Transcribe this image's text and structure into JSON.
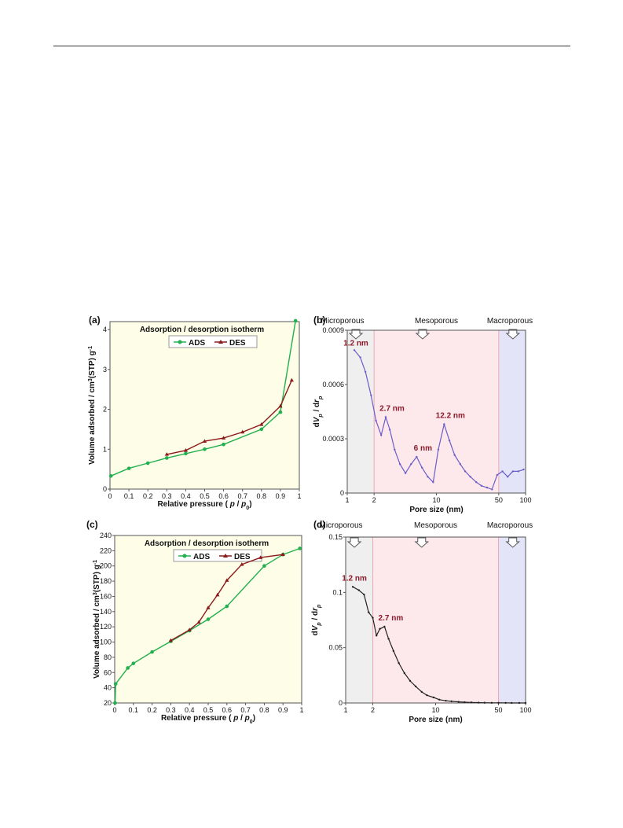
{
  "chart_data": [
    {
      "panel": "(a)",
      "type": "line",
      "title": "Adsorption / desorption isotherm",
      "xlabel": "Relative pressure ( p / p0)",
      "ylabel": "Volume adsorbed / cm3(STP) g-1",
      "xlim": [
        0,
        1
      ],
      "ylim": [
        0,
        4.2
      ],
      "xticks": [
        0,
        0.1,
        0.2,
        0.3,
        0.4,
        0.5,
        0.6,
        0.7,
        0.8,
        0.9,
        1
      ],
      "xtick_labels": [
        "0",
        "0.1",
        "0.2",
        "0.3",
        "0.4",
        "0.5",
        "0.6",
        "0.7",
        "0.8",
        "0.9",
        "1"
      ],
      "yticks": [
        0,
        1,
        2,
        3,
        4
      ],
      "ytick_labels": [
        "0",
        "1",
        "2",
        "3",
        "4"
      ],
      "legend_position": "top-center",
      "background": "#fdfde8",
      "series": [
        {
          "name": "ADS",
          "color": "#22b04e",
          "marker": "circle",
          "x": [
            0.005,
            0.1,
            0.2,
            0.3,
            0.4,
            0.5,
            0.6,
            0.8,
            0.9,
            0.98
          ],
          "y": [
            0.33,
            0.52,
            0.65,
            0.78,
            0.89,
            1.0,
            1.12,
            1.5,
            1.93,
            4.22
          ]
        },
        {
          "name": "DES",
          "color": "#8b1a1a",
          "marker": "triangle",
          "x": [
            0.3,
            0.4,
            0.5,
            0.6,
            0.7,
            0.8,
            0.9,
            0.96
          ],
          "y": [
            0.87,
            0.97,
            1.2,
            1.28,
            1.43,
            1.62,
            2.08,
            2.73
          ]
        }
      ]
    },
    {
      "panel": "(b)",
      "type": "line",
      "xlabel": "Pore size (nm)",
      "ylabel": "dVp / drp",
      "xscale": "log",
      "xlim": [
        1,
        100
      ],
      "ylim": [
        0,
        0.0009
      ],
      "xticks": [
        1,
        2,
        10,
        50,
        100
      ],
      "xtick_labels": [
        "1",
        "2",
        "10",
        "50",
        "100"
      ],
      "yticks": [
        0,
        0.0003,
        0.0006,
        0.0009
      ],
      "ytick_labels": [
        "0",
        "0.0003",
        "0.0006",
        "0.0009"
      ],
      "regions": [
        {
          "label": "Microporous",
          "from": 1,
          "to": 2,
          "color": "#efefef"
        },
        {
          "label": "Mesoporous",
          "from": 2,
          "to": 50,
          "color": "#fde8ec"
        },
        {
          "label": "Macroporous",
          "from": 50,
          "to": 100,
          "color": "#e4e4f8"
        }
      ],
      "annotations": [
        {
          "text": "1.2 nm",
          "x": 1.2,
          "y": 0.00078
        },
        {
          "text": "2.7 nm",
          "x": 2.7,
          "y": 0.00042
        },
        {
          "text": "6 nm",
          "x": 6,
          "y": 0.0002
        },
        {
          "text": "12.2 nm",
          "x": 12.2,
          "y": 0.00038
        }
      ],
      "series": [
        {
          "color": "#6a5ec8",
          "x": [
            1.2,
            1.4,
            1.6,
            1.85,
            2.1,
            2.4,
            2.7,
            3.0,
            3.4,
            3.9,
            4.5,
            5.2,
            6.0,
            6.9,
            8.0,
            9.2,
            10.5,
            12.2,
            14,
            16,
            18.5,
            21,
            24,
            28,
            32,
            37,
            42,
            48,
            55,
            63,
            72,
            83,
            95
          ],
          "y": [
            0.00079,
            0.00075,
            0.00067,
            0.00054,
            0.0004,
            0.00032,
            0.00042,
            0.00035,
            0.00024,
            0.00016,
            0.00011,
            0.00016,
            0.0002,
            0.00014,
            9e-05,
            6e-05,
            0.00024,
            0.00038,
            0.00029,
            0.00021,
            0.00016,
            0.00012,
            9e-05,
            6e-05,
            4e-05,
            3e-05,
            2e-05,
            0.0001,
            0.00012,
            9e-05,
            0.00012,
            0.00012,
            0.00013
          ]
        }
      ]
    },
    {
      "panel": "(c)",
      "type": "line",
      "title": "Adsorption / desorption isotherm",
      "xlabel": "Relative pressure ( p / p0)",
      "ylabel": "Volume adsorbed / cm3(STP) g-1",
      "xlim": [
        0,
        1
      ],
      "ylim": [
        20,
        240
      ],
      "xticks": [
        0,
        0.1,
        0.2,
        0.3,
        0.4,
        0.5,
        0.6,
        0.7,
        0.8,
        0.9,
        1
      ],
      "xtick_labels": [
        "0",
        "0.1",
        "0.2",
        "0.3",
        "0.4",
        "0.5",
        "0.6",
        "0.7",
        "0.8",
        "0.9",
        "1"
      ],
      "yticks": [
        20,
        40,
        60,
        80,
        100,
        120,
        140,
        160,
        180,
        200,
        220,
        240
      ],
      "ytick_labels": [
        "20",
        "40",
        "60",
        "80",
        "100",
        "120",
        "140",
        "160",
        "180",
        "200",
        "220",
        "240"
      ],
      "legend_position": "top-center",
      "background": "#fdfde8",
      "series": [
        {
          "name": "ADS",
          "color": "#22b04e",
          "marker": "circle",
          "x": [
            0.002,
            0.005,
            0.07,
            0.1,
            0.2,
            0.3,
            0.4,
            0.5,
            0.6,
            0.8,
            0.9,
            0.99
          ],
          "y": [
            20,
            45,
            66,
            72,
            87,
            101,
            115,
            130,
            147,
            200,
            215,
            223
          ]
        },
        {
          "name": "DES",
          "color": "#8b1a1a",
          "marker": "triangle",
          "x": [
            0.3,
            0.4,
            0.45,
            0.5,
            0.55,
            0.6,
            0.68,
            0.78,
            0.9
          ],
          "y": [
            102,
            116,
            126,
            145,
            162,
            181,
            202,
            211,
            215
          ]
        }
      ]
    },
    {
      "panel": "(d)",
      "type": "line",
      "xlabel": "Pore size (nm)",
      "ylabel": "dVp / drp",
      "xscale": "log",
      "xlim": [
        1,
        100
      ],
      "ylim": [
        0,
        0.15
      ],
      "xticks": [
        1,
        2,
        10,
        50,
        100
      ],
      "xtick_labels": [
        "1",
        "2",
        "10",
        "50",
        "100"
      ],
      "yticks": [
        0,
        0.05,
        0.1,
        0.15
      ],
      "ytick_labels": [
        "0",
        "0.05",
        "0.1",
        "0.15"
      ],
      "regions": [
        {
          "label": "Microporous",
          "from": 1,
          "to": 2,
          "color": "#efefef"
        },
        {
          "label": "Mesoporous",
          "from": 2,
          "to": 50,
          "color": "#fde8ec"
        },
        {
          "label": "Macroporous",
          "from": 50,
          "to": 100,
          "color": "#e4e4f8"
        }
      ],
      "annotations": [
        {
          "text": "1.2 nm",
          "x": 1.2,
          "y": 0.105
        },
        {
          "text": "2.7 nm",
          "x": 2.7,
          "y": 0.069
        }
      ],
      "series": [
        {
          "color": "#222222",
          "x": [
            1.2,
            1.4,
            1.6,
            1.8,
            2.0,
            2.2,
            2.4,
            2.7,
            3.0,
            3.4,
            3.9,
            4.5,
            5.2,
            6.0,
            7.0,
            8.0,
            9.5,
            11,
            13,
            15,
            18,
            21,
            25,
            30,
            35,
            42,
            50,
            60,
            70,
            85,
            100
          ],
          "y": [
            0.105,
            0.102,
            0.098,
            0.082,
            0.077,
            0.061,
            0.067,
            0.069,
            0.058,
            0.047,
            0.036,
            0.027,
            0.02,
            0.015,
            0.01,
            0.007,
            0.005,
            0.003,
            0.002,
            0.0015,
            0.001,
            0.0007,
            0.0005,
            0.0003,
            0.0002,
            0.0001,
            0.0001,
            5e-05,
            3e-05,
            2e-05,
            1e-05
          ]
        }
      ]
    }
  ],
  "panel_texts": [
    {
      "title": "(a)"
    },
    {
      "title": "(b)"
    },
    {
      "title": "(c)"
    },
    {
      "title": "(d)"
    }
  ]
}
